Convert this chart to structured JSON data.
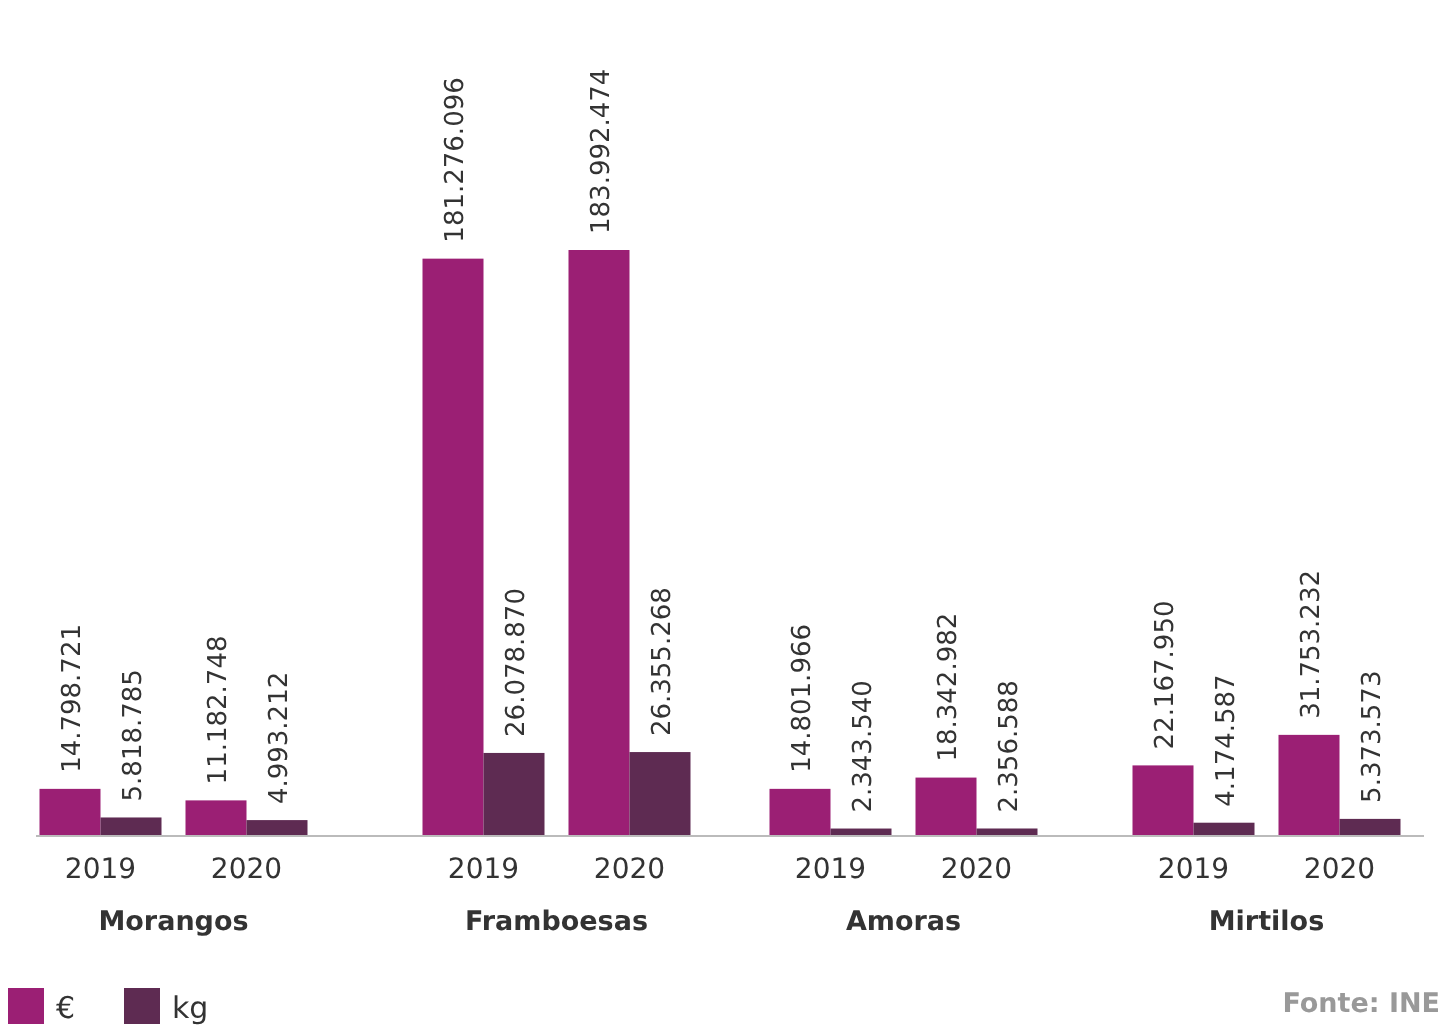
{
  "chart_data": {
    "type": "bar",
    "categories": [
      "2019",
      "2020",
      "2019",
      "2020",
      "2019",
      "2020",
      "2019",
      "2020"
    ],
    "series": [
      {
        "name": "€",
        "color": "#9b1f74",
        "values": [
          14798721,
          11182748,
          181276096,
          183992474,
          14801966,
          18342982,
          22167950,
          31753232
        ],
        "value_labels": [
          "14.798.721",
          "11.182.748",
          "181.276.096",
          "183.992.474",
          "14.801.966",
          "18.342.982",
          "22.167.950",
          "31.753.232"
        ]
      },
      {
        "name": "kg",
        "color": "#5e2b52",
        "values": [
          5818785,
          4993212,
          26078870,
          26355268,
          2343540,
          2356588,
          4174587,
          5373573
        ],
        "value_labels": [
          "5.818.785",
          "4.993.212",
          "26.078.870",
          "26.355.268",
          "2.343.540",
          "2.356.588",
          "4.174.587",
          "5.373.573"
        ]
      }
    ],
    "legend": "bottom left",
    "annotations": [
      "Morangos",
      "Framboesas",
      "Amoras",
      "Mirtilos",
      "Fonte: INE"
    ]
  }
}
